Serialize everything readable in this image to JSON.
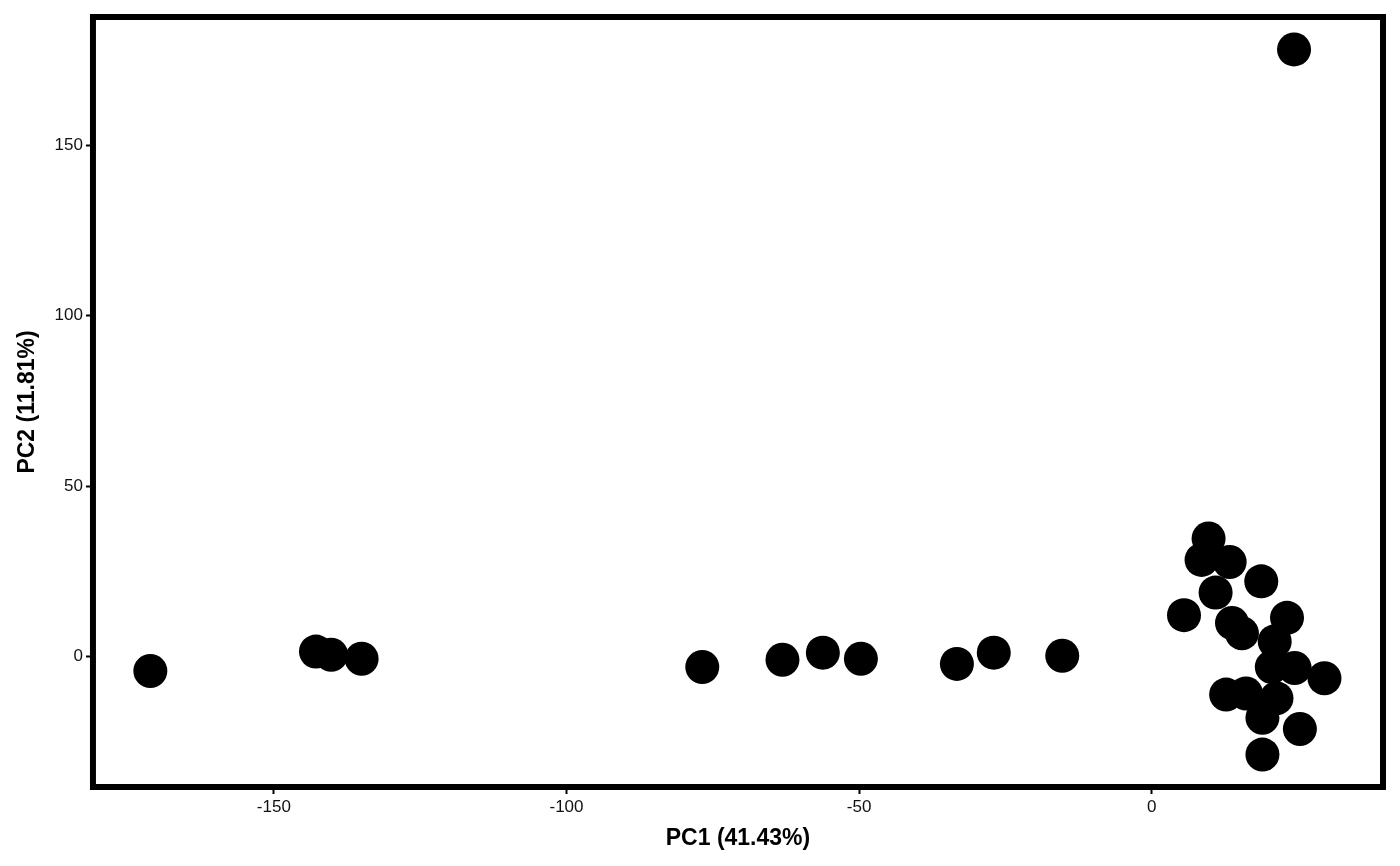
{
  "chart_data": {
    "type": "scatter",
    "xlabel": "PC1 (41.43%)",
    "ylabel": "PC2 (11.81%)",
    "x": [
      24.3,
      -171.1,
      -142.8,
      -140.2,
      -135.0,
      -76.8,
      -63.1,
      -56.2,
      -49.7,
      -33.3,
      -27.0,
      -15.3,
      9.7,
      8.5,
      13.3,
      10.9,
      18.7,
      5.5,
      13.7,
      15.4,
      23.1,
      21.0,
      20.5,
      24.4,
      29.5,
      12.7,
      16.1,
      21.3,
      18.9,
      25.3,
      18.9
    ],
    "values": [
      178.1,
      -4.2,
      1.5,
      0.6,
      -0.6,
      -3.0,
      -0.9,
      1.2,
      -0.6,
      -2.1,
      1.2,
      0.3,
      34.7,
      28.4,
      27.8,
      18.8,
      22.1,
      12.2,
      9.9,
      6.9,
      11.4,
      4.5,
      -3.0,
      -3.3,
      -6.3,
      -11.1,
      -10.8,
      -12.2,
      -17.9,
      -21.2,
      -28.7
    ],
    "color": "#000000",
    "marker": "circle",
    "xlim": [
      -180.9,
      39.5
    ],
    "xticks": [
      -150,
      -100,
      -50,
      0
    ],
    "ylim": [
      -38.2,
      187.6
    ],
    "yticks": [
      0,
      50,
      100,
      150
    ],
    "grid": false,
    "legend": false
  }
}
